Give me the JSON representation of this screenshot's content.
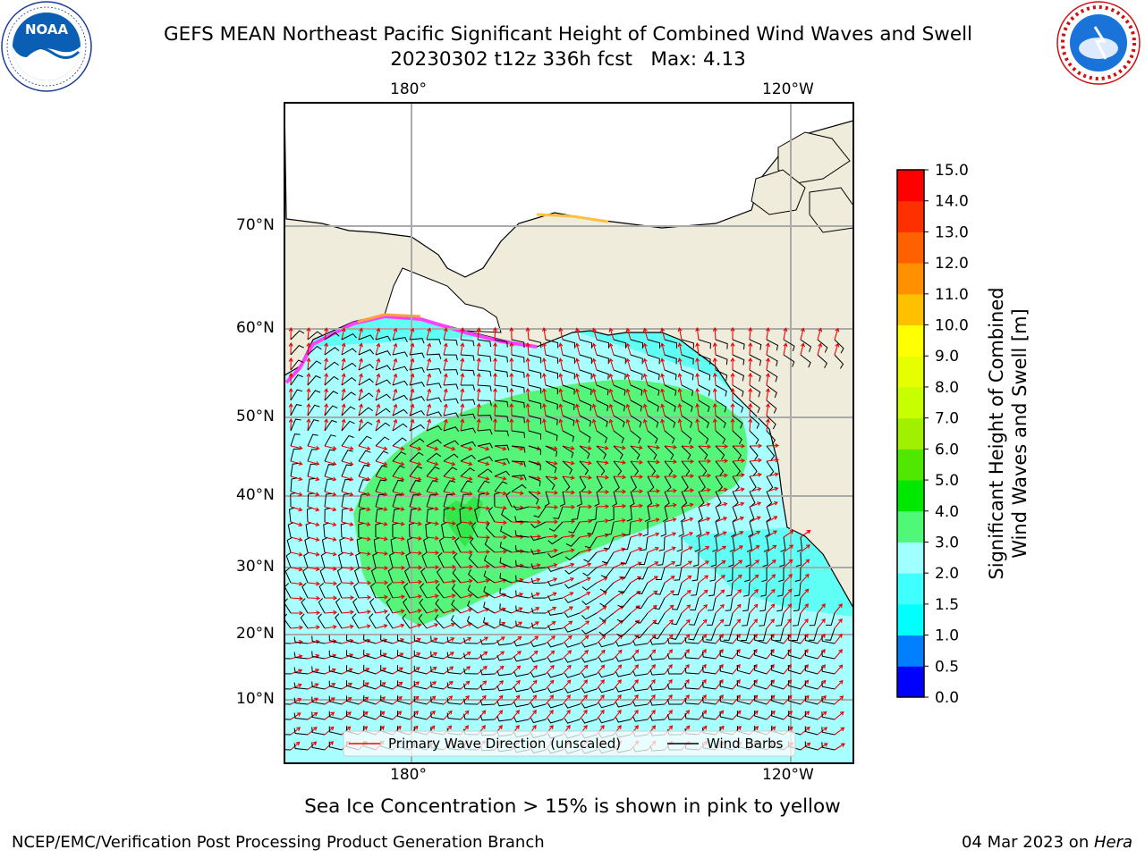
{
  "title": {
    "line1": "GEFS MEAN Northeast Pacific Significant Height of Combined Wind Waves and Swell",
    "line2": "20230302 t12z 336h fcst   Max: 4.13"
  },
  "logos": {
    "left": {
      "text": "NOAA",
      "ring_text": "NATIONAL OCEANIC AND ATMOSPHERIC ADMINISTRATION · U.S. DEPARTMENT OF COMMERCE"
    },
    "right": {
      "ring_text": "NATIONAL WEATHER SERVICE"
    }
  },
  "map": {
    "lon_labels_top": [
      "180°",
      "120°W"
    ],
    "lon_labels_bottom": [
      "180°",
      "120°W"
    ],
    "lat_labels": [
      "70°N",
      "60°N",
      "50°N",
      "40°N",
      "30°N",
      "20°N",
      "10°N"
    ],
    "legend": {
      "wave_direction": "Primary Wave Direction (unscaled)",
      "wind_barbs": "Wind Barbs",
      "wave_color": "#ff0000",
      "barb_color": "#000000"
    },
    "colors": {
      "land": "#efecdc",
      "ocean_low": "#5ffff5",
      "ocean_mid": "#a8ffff",
      "ocean_high": "#55f57a",
      "ocean_peak": "#33e64a",
      "grid": "#aaaaaa"
    }
  },
  "colorbar": {
    "title_line1": "Significant Height of Combined",
    "title_line2": "Wind Waves and Swell [m]",
    "ticks": [
      "0.0",
      "0.5",
      "1.0",
      "1.5",
      "2.0",
      "3.0",
      "4.0",
      "5.0",
      "6.0",
      "7.0",
      "8.0",
      "9.0",
      "10.0",
      "11.0",
      "12.0",
      "13.0",
      "14.0",
      "15.0"
    ],
    "colors": [
      "#0000ff",
      "#0080ff",
      "#00ffff",
      "#40ffff",
      "#a0ffff",
      "#50f878",
      "#00e800",
      "#50e800",
      "#a0f000",
      "#c8ff00",
      "#e6ff00",
      "#ffff00",
      "#ffc000",
      "#ff9000",
      "#ff6000",
      "#ff3000",
      "#ff0000"
    ]
  },
  "footer": {
    "note": "Sea Ice Concentration > 15% is shown in pink to yellow",
    "credit_left": "NCEP/EMC/Verification Post Processing Product Generation Branch",
    "credit_date": "04 Mar 2023 on ",
    "credit_machine": "Hera"
  }
}
